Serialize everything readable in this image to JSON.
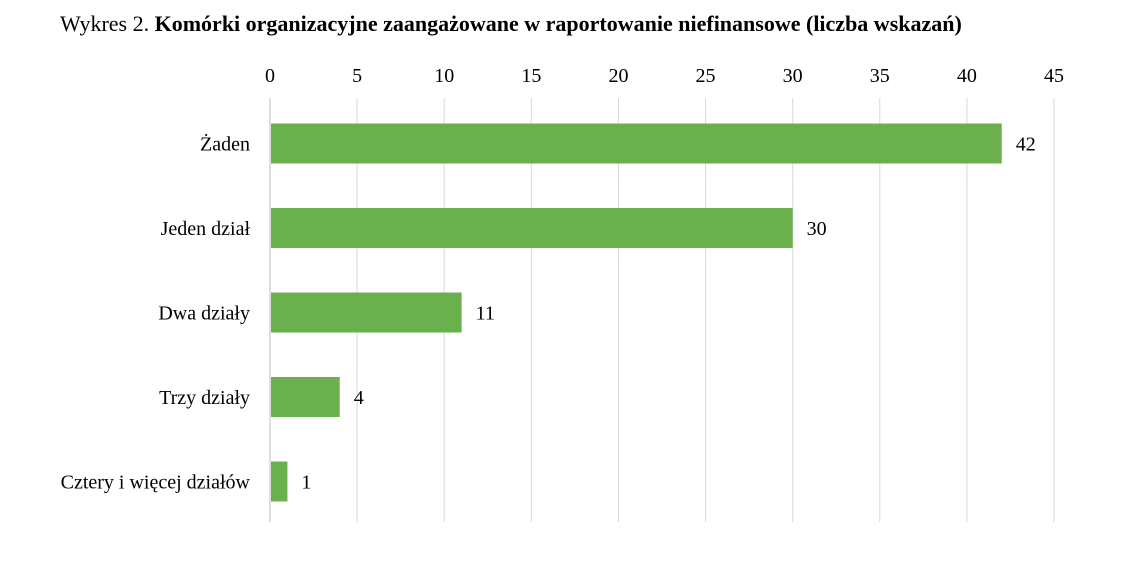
{
  "title": {
    "prefix": "Wykres 2. ",
    "main": "Komórki organizacyjne zaangażowane w raportowanie niefinansowe (liczba wskazań)"
  },
  "chart_data": {
    "type": "bar",
    "orientation": "horizontal",
    "categories": [
      "Żaden",
      "Jeden dział",
      "Dwa działy",
      "Trzy działy",
      "Cztery i więcej działów"
    ],
    "values": [
      42,
      30,
      11,
      4,
      1
    ],
    "xlim": [
      0,
      45
    ],
    "xticks": [
      0,
      5,
      10,
      15,
      20,
      25,
      30,
      35,
      40,
      45
    ],
    "x_axis_position": "top",
    "grid": true,
    "data_labels": true,
    "bar_color": "#6ab04c",
    "grid_color": "#d9d9d9"
  }
}
